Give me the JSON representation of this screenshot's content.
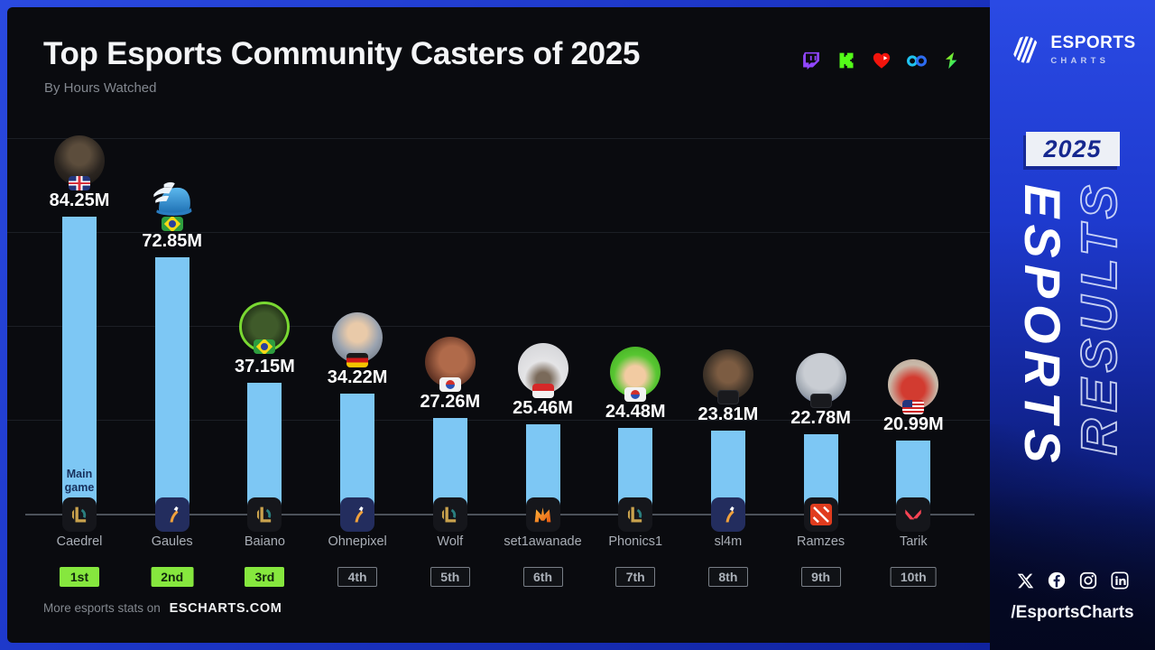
{
  "header": {
    "title": "Top Esports Community Casters of 2025",
    "subtitle": "By Hours Watched"
  },
  "platforms": [
    "twitch-icon",
    "kick-icon",
    "heart-icon",
    "soop-icon",
    "chzzk-icon"
  ],
  "chart_data": {
    "type": "bar",
    "title": "Top Esports Community Casters of 2025",
    "subtitle": "By Hours Watched",
    "unit": "millions of hours watched",
    "categories": [
      "Caedrel",
      "Gaules",
      "Baiano",
      "Ohnepixel",
      "Wolf",
      "set1awanade",
      "Phonics1",
      "sl4m",
      "Ramzes",
      "Tarik"
    ],
    "values": [
      84.25,
      72.85,
      37.15,
      34.22,
      27.26,
      25.46,
      24.48,
      23.81,
      22.78,
      20.99
    ],
    "value_labels": [
      "84.25M",
      "72.85M",
      "37.15M",
      "34.22M",
      "27.26M",
      "25.46M",
      "24.48M",
      "23.81M",
      "22.78M",
      "20.99M"
    ],
    "ranks": [
      "1st",
      "2nd",
      "3rd",
      "4th",
      "5th",
      "6th",
      "7th",
      "8th",
      "9th",
      "10th"
    ],
    "games": [
      "lol",
      "cs2",
      "lol",
      "cs2",
      "lol",
      "mlbb",
      "lol",
      "cs2",
      "dota2",
      "valorant"
    ],
    "flags": [
      "gb",
      "br",
      "br",
      "de",
      "kr",
      "id",
      "kr",
      "censored",
      "censored",
      "us"
    ],
    "annotation": {
      "text": "Main game",
      "column": "Caedrel"
    },
    "bar_color": "#7dc7f4",
    "rank_highlight_color": "#86e73e",
    "ylim": [
      0,
      90
    ],
    "gridlines": true,
    "legend": false,
    "xlabel": "",
    "ylabel": ""
  },
  "footer": {
    "prefix": "More esports stats on",
    "site": "ESCHARTS.COM"
  },
  "sidebar": {
    "logo_line1": "ESPORTS",
    "logo_line2": "CHARTS",
    "year": "2025",
    "watermark_solid": "ESPORTS",
    "watermark_outline": "RESULTS",
    "socials": [
      "x-icon",
      "facebook-icon",
      "instagram-icon",
      "linkedin-icon"
    ],
    "handle": "/EsportsCharts"
  }
}
